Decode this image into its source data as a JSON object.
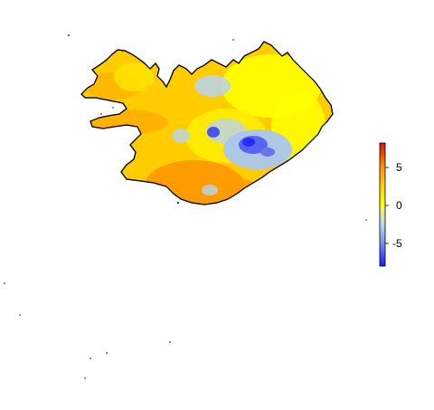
{
  "map": {
    "region": "Iceland",
    "colormap": [
      "#1a1aff",
      "#a8c4f0",
      "#ffff00",
      "#ff9900",
      "#dd1100"
    ],
    "legend": {
      "ticks": [
        "5",
        "0",
        "-5"
      ],
      "range": [
        -8,
        8
      ]
    },
    "islands_shown": true,
    "border_color": "#000000"
  }
}
